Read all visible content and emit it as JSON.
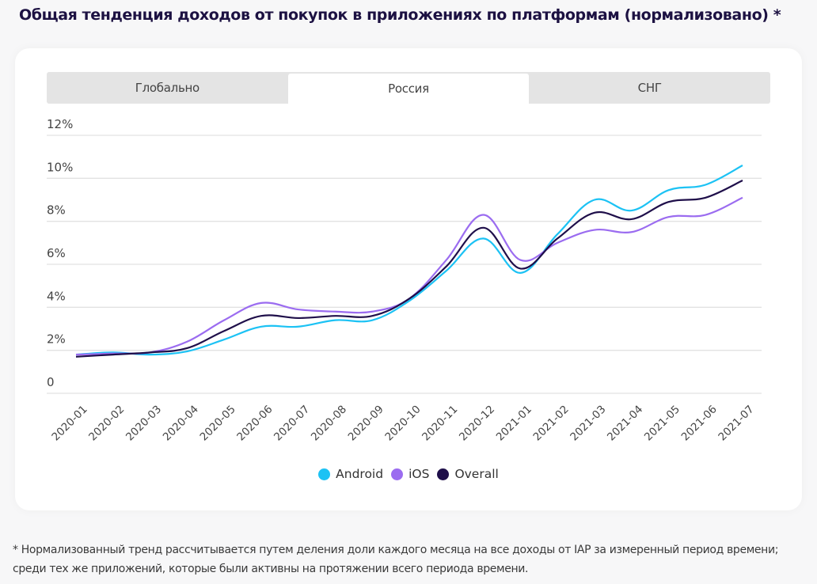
{
  "page": {
    "title": "Общая тенденция доходов от покупок в приложениях по платформам (нормализовано) *",
    "footnote": "* Нормализованный тренд рассчитывается путем деления доли каждого месяца на все доходы от IAP за измеренный период времени; среди тех же приложений, которые были активны на протяжении всего периода времени."
  },
  "tabs": [
    {
      "label": "Глобально",
      "active": false
    },
    {
      "label": "Россия",
      "active": true
    },
    {
      "label": "СНГ",
      "active": false
    }
  ],
  "chart_data": {
    "type": "line",
    "title": "",
    "xlabel": "",
    "ylabel": "",
    "ylim": [
      0,
      12
    ],
    "y_ticks": [
      {
        "value": 0,
        "label": "0"
      },
      {
        "value": 2,
        "label": "2%"
      },
      {
        "value": 4,
        "label": "4%"
      },
      {
        "value": 6,
        "label": "6%"
      },
      {
        "value": 8,
        "label": "8%"
      },
      {
        "value": 10,
        "label": "10%"
      },
      {
        "value": 12,
        "label": "12%"
      }
    ],
    "grid": true,
    "smooth": true,
    "legend_position": "bottom-center",
    "categories": [
      "2020-01",
      "2020-02",
      "2020-03",
      "2020-04",
      "2020-05",
      "2020-06",
      "2020-07",
      "2020-08",
      "2020-09",
      "2020-10",
      "2020-11",
      "2020-12",
      "2021-01",
      "2021-02",
      "2021-03",
      "2021-04",
      "2021-05",
      "2021-06",
      "2021-07"
    ],
    "series": [
      {
        "name": "Android",
        "color": "#1cc2f4",
        "values": [
          1.8,
          1.9,
          1.8,
          1.95,
          2.5,
          3.1,
          3.1,
          3.4,
          3.4,
          4.3,
          5.7,
          7.2,
          5.6,
          7.4,
          9.0,
          8.5,
          9.45,
          9.7,
          10.6
        ]
      },
      {
        "name": "iOS",
        "color": "#9b6cf0",
        "values": [
          1.8,
          1.85,
          1.9,
          2.4,
          3.4,
          4.2,
          3.9,
          3.8,
          3.8,
          4.4,
          6.2,
          8.3,
          6.2,
          7.0,
          7.6,
          7.5,
          8.2,
          8.3,
          9.1
        ]
      },
      {
        "name": "Overall",
        "color": "#1f0f4a",
        "values": [
          1.7,
          1.8,
          1.9,
          2.1,
          2.9,
          3.6,
          3.5,
          3.6,
          3.6,
          4.4,
          5.9,
          7.7,
          5.8,
          7.2,
          8.4,
          8.1,
          8.9,
          9.1,
          9.9
        ]
      }
    ]
  }
}
